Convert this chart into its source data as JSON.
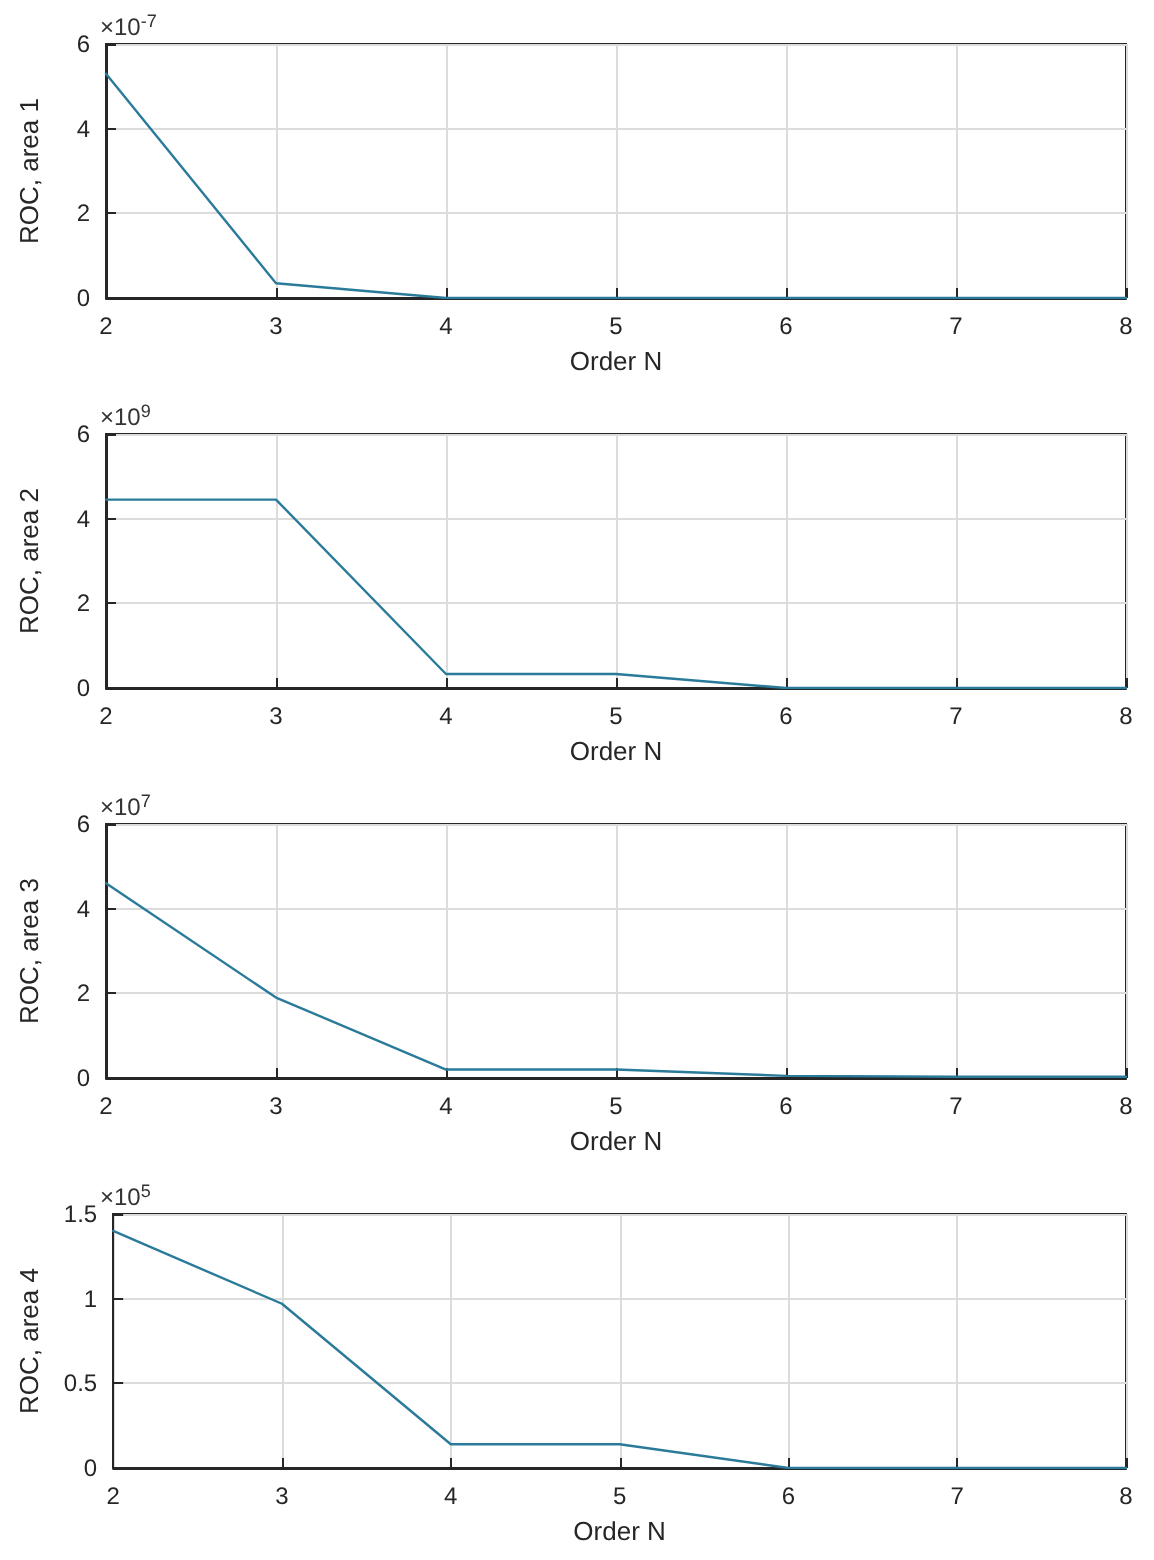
{
  "chart_data": [
    {
      "type": "line",
      "xlabel": "Order N",
      "ylabel": "ROC, area 1",
      "annotations": [
        "×10$^{-7}$"
      ],
      "x": [
        2,
        3,
        4,
        5,
        6,
        7,
        8
      ],
      "series": [
        {
          "color": "#2a7a9a",
          "values": [
            5.3,
            0.35,
            0,
            0,
            0,
            0,
            0
          ]
        }
      ],
      "xlim": [
        2,
        8
      ],
      "xticks": [
        2,
        3,
        4,
        5,
        6,
        7,
        8
      ],
      "ylim": [
        0,
        6
      ],
      "yticks": [
        0,
        2,
        4,
        6
      ],
      "grid": true,
      "marker": "none",
      "line_style": "solid"
    },
    {
      "type": "line",
      "xlabel": "Order N",
      "ylabel": "ROC, area 2",
      "annotations": [
        "×10$^{9}$"
      ],
      "x": [
        2,
        3,
        4,
        5,
        6,
        7,
        8
      ],
      "series": [
        {
          "color": "#2a7a9a",
          "values": [
            4.45,
            4.45,
            0.33,
            0.33,
            0,
            0,
            0
          ]
        }
      ],
      "xlim": [
        2,
        8
      ],
      "xticks": [
        2,
        3,
        4,
        5,
        6,
        7,
        8
      ],
      "ylim": [
        0,
        6
      ],
      "yticks": [
        0,
        2,
        4,
        6
      ],
      "grid": true,
      "marker": "none",
      "line_style": "solid"
    },
    {
      "type": "line",
      "xlabel": "Order N",
      "ylabel": "ROC, area 3",
      "annotations": [
        "×10$^{7}$"
      ],
      "x": [
        2,
        3,
        4,
        5,
        6,
        7,
        8
      ],
      "series": [
        {
          "color": "#2a7a9a",
          "values": [
            4.6,
            1.9,
            0.2,
            0.2,
            0.05,
            0.03,
            0.03
          ]
        }
      ],
      "xlim": [
        2,
        8
      ],
      "xticks": [
        2,
        3,
        4,
        5,
        6,
        7,
        8
      ],
      "ylim": [
        0,
        6
      ],
      "yticks": [
        0,
        2,
        4,
        6
      ],
      "grid": true,
      "marker": "none",
      "line_style": "solid"
    },
    {
      "type": "line",
      "xlabel": "Order N",
      "ylabel": "ROC, area 4",
      "annotations": [
        "×10$^{5}$"
      ],
      "x": [
        2,
        3,
        4,
        5,
        6,
        7,
        8
      ],
      "series": [
        {
          "color": "#2a7a9a",
          "values": [
            1.4,
            0.97,
            0.14,
            0.14,
            0,
            0,
            0
          ]
        }
      ],
      "xlim": [
        2,
        8
      ],
      "xticks": [
        2,
        3,
        4,
        5,
        6,
        7,
        8
      ],
      "ylim": [
        0,
        1.5
      ],
      "yticks": [
        0,
        0.5,
        1,
        1.5
      ],
      "grid": true,
      "marker": "none",
      "line_style": "solid"
    }
  ]
}
